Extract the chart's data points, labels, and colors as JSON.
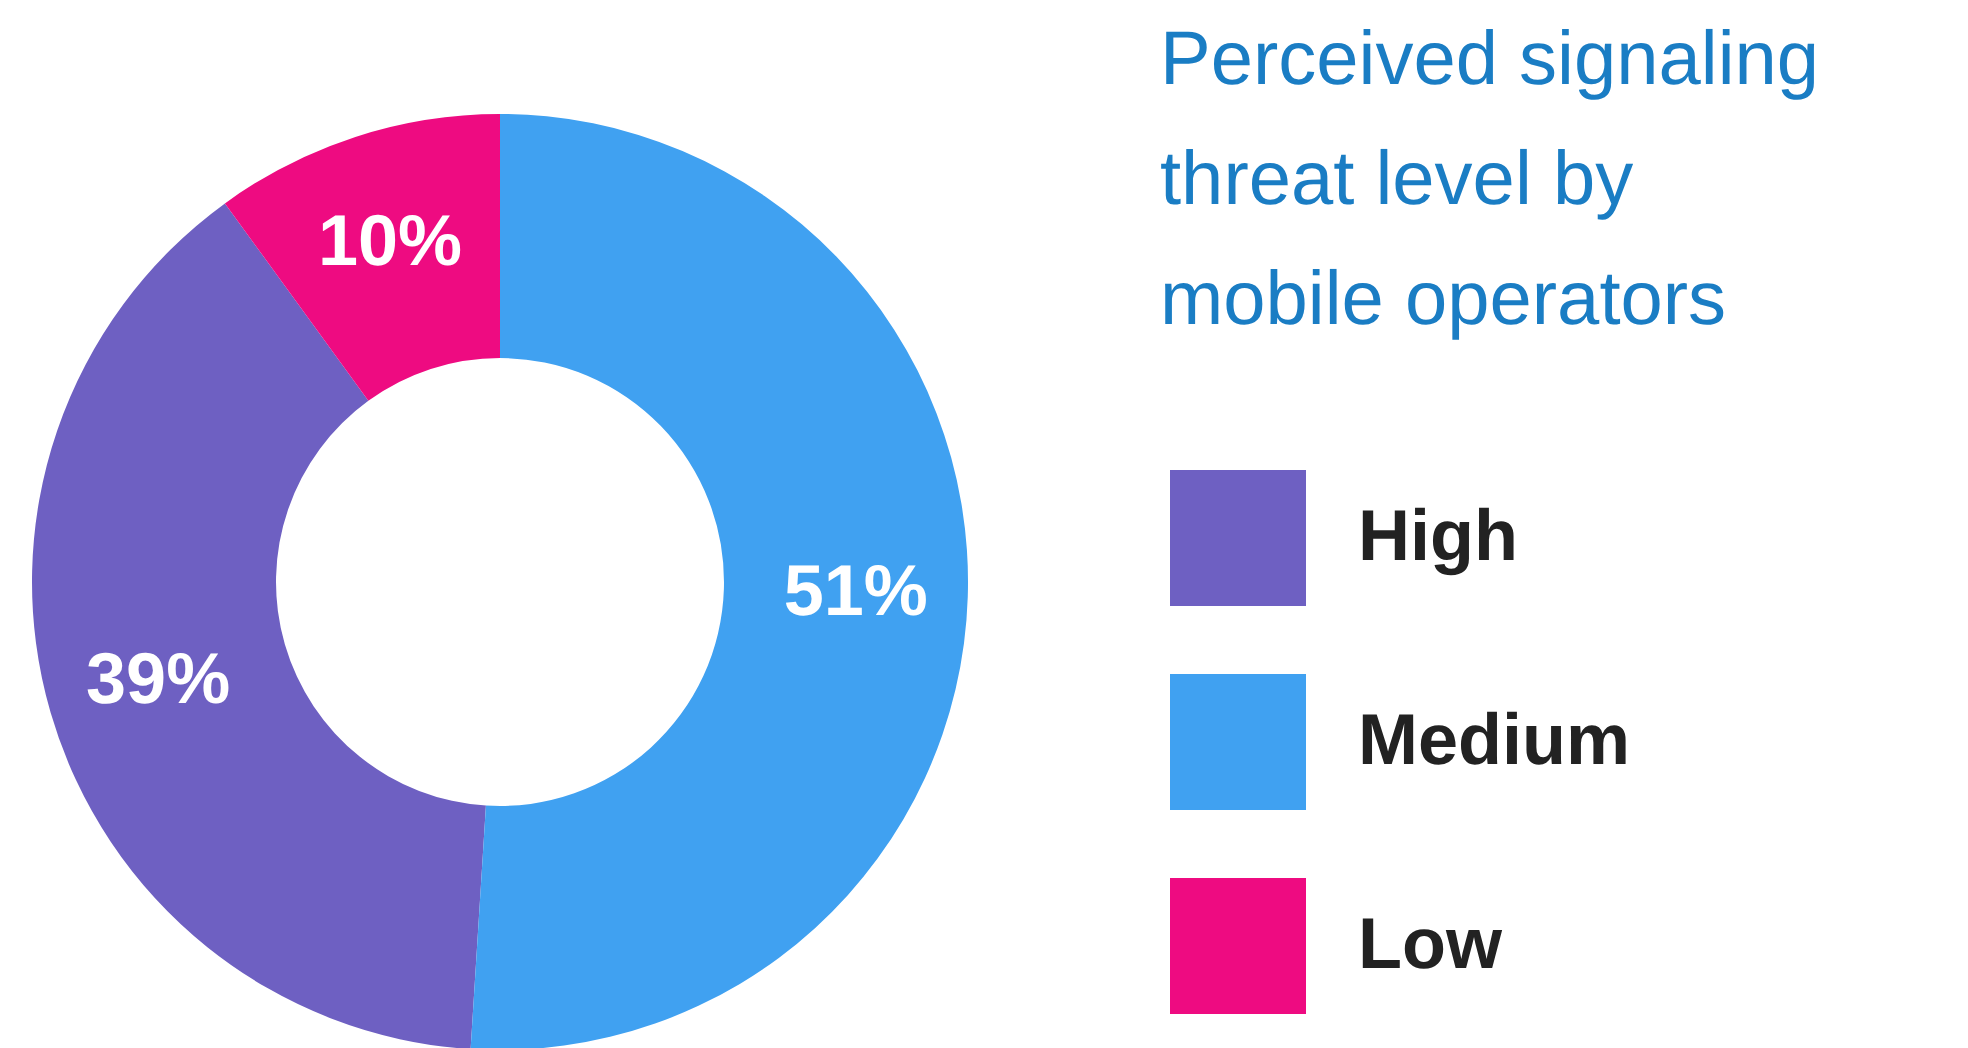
{
  "chart_data": {
    "type": "donut",
    "title": "Perceived signaling threat level by mobile operators",
    "categories": [
      "High",
      "Medium",
      "Low"
    ],
    "values": [
      39,
      51,
      10
    ],
    "colors": [
      "#6e60c2",
      "#40a1f1",
      "#ee0b81"
    ],
    "value_labels": [
      "39%",
      "51%",
      "10%"
    ],
    "legend": "right"
  }
}
